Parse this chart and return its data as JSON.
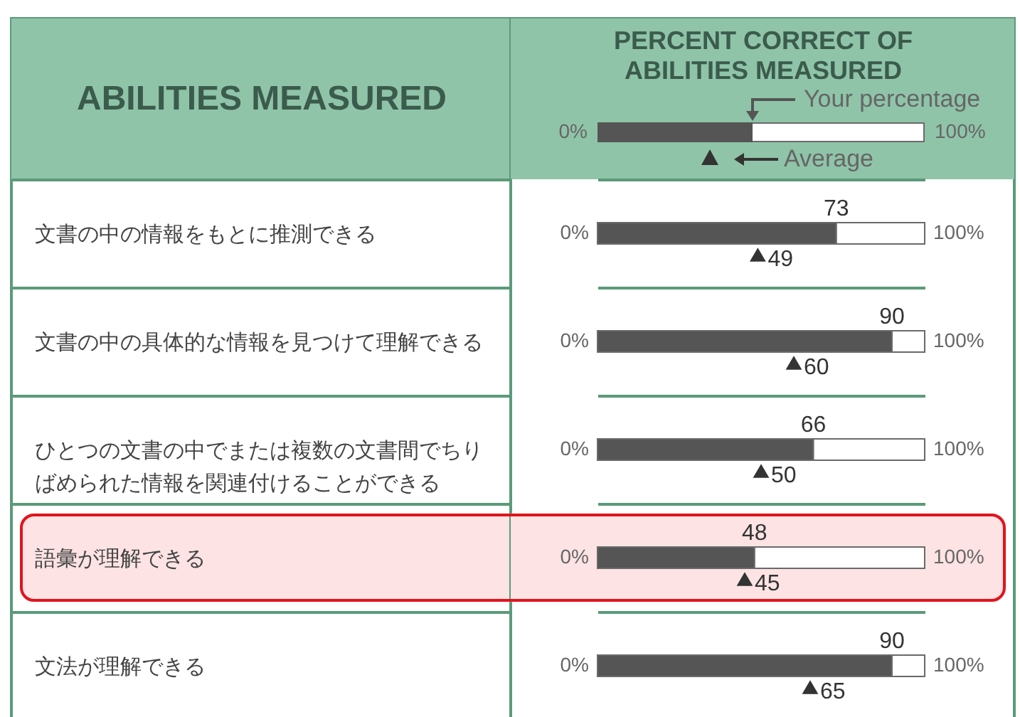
{
  "chart_data": {
    "type": "bar",
    "orientation": "horizontal",
    "stacked": true,
    "xlabel": "PERCENT CORRECT OF ABILITIES MEASURED",
    "ylabel": "ABILITIES MEASURED",
    "categories": [
      "文書の中の情報をもとに推測できる",
      "文書の中の具体的な情報を見つけて理解できる",
      "ひとつの文書の中でまたは複数の文書間でちりばめられた情報を関連付けることができる",
      "語彙が理解できる",
      "文法が理解できる"
    ],
    "series": [
      {
        "name": "Your percentage",
        "color": "#555555",
        "values": [
          73,
          90,
          66,
          48,
          90
        ],
        "value_labels": [
          "73",
          "90",
          "66",
          "48",
          "90"
        ]
      },
      {
        "color": "#ffffff",
        "values": [
          27,
          10,
          34,
          52,
          10
        ]
      },
      {
        "name": "Average",
        "type": "scatter",
        "marker": "triangle",
        "color": "#333333",
        "values": [
          49,
          60,
          50,
          45,
          65
        ],
        "value_labels": [
          "49",
          "60",
          "50",
          "45",
          "65"
        ]
      }
    ],
    "xlim": [
      0,
      100
    ],
    "annotations": [
      {
        "text": "0%",
        "x": 0
      },
      {
        "text": "100%",
        "x": 100
      }
    ],
    "bands": [
      {
        "axis": "y",
        "from": "語彙が理解できる",
        "to": "語彙が理解できる",
        "color": "#fde3e3"
      }
    ],
    "grid": "y",
    "legend": "top right"
  }
}
